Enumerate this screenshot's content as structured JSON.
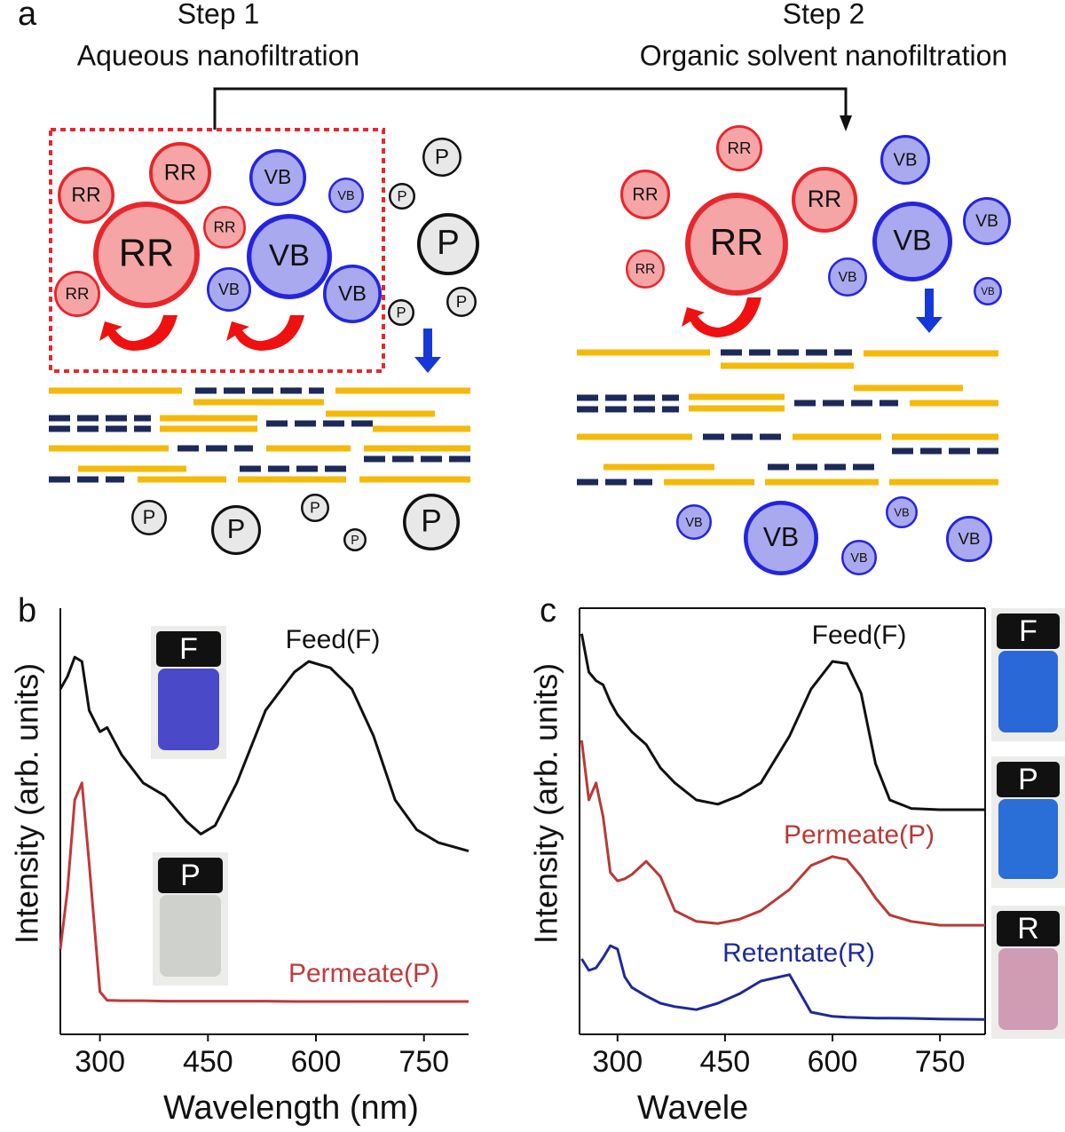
{
  "panel_labels": [
    "a",
    "b",
    "c"
  ],
  "diagram": {
    "step1": {
      "title": "Step 1",
      "subtitle": "Aqueous nanofiltration"
    },
    "step2": {
      "title": "Step 2",
      "subtitle": "Organic solvent nanofiltration"
    },
    "species": {
      "rr": "RR",
      "vb": "VB",
      "p": "P"
    }
  },
  "chart_data": [
    {
      "type": "line",
      "x_label": "Wavelength (nm)",
      "y_label": "Intensity (arb. units)",
      "xlim": [
        245,
        812
      ],
      "ylim": [
        0,
        100
      ],
      "xticks": [
        300,
        450,
        600,
        750
      ],
      "x": [
        245,
        255,
        265,
        275,
        285,
        300,
        310,
        330,
        360,
        390,
        420,
        440,
        460,
        490,
        530,
        570,
        590,
        620,
        650,
        680,
        710,
        740,
        770,
        812
      ],
      "series": [
        {
          "name": "Feed(F)",
          "color": "#111111",
          "values": [
            81,
            84,
            88.5,
            87.5,
            76,
            71,
            72,
            65.6,
            59,
            56,
            50,
            47,
            49,
            59,
            76,
            85,
            87.5,
            86,
            81,
            70,
            55,
            48,
            45,
            43
          ]
        },
        {
          "name": "Permeate(P)",
          "color": "#c0393b",
          "values": [
            20,
            34,
            55,
            59,
            40,
            10,
            8,
            7.9,
            7.9,
            7.8,
            7.8,
            7.8,
            7.8,
            7.8,
            7.8,
            7.7,
            7.7,
            7.7,
            7.7,
            7.7,
            7.7,
            7.7,
            7.7,
            7.7
          ]
        }
      ],
      "vials": [
        "F",
        "P"
      ]
    },
    {
      "type": "line",
      "x_label": "Wavele",
      "y_label": "Intensity (arb. units)",
      "xlim": [
        247,
        813
      ],
      "ylim": [
        0,
        100
      ],
      "xticks": [
        300,
        450,
        600,
        750
      ],
      "x": [
        250,
        260,
        270,
        280,
        290,
        300,
        310,
        320,
        340,
        360,
        380,
        410,
        440,
        470,
        500,
        540,
        570,
        600,
        620,
        640,
        660,
        680,
        710,
        750,
        813
      ],
      "series": [
        {
          "name": "Feed(F)",
          "color": "#111111",
          "values": [
            94,
            85,
            83,
            82,
            78,
            75,
            73,
            71,
            68,
            62.5,
            59,
            55,
            54,
            56,
            59,
            70,
            81,
            87.5,
            87,
            80,
            63.5,
            55,
            53,
            52.7,
            52.7
          ]
        },
        {
          "name": "Permeate(P)",
          "color": "#b83a36",
          "values": [
            69,
            55,
            59,
            51,
            38,
            36,
            36.5,
            37.5,
            40.6,
            37,
            29,
            26.5,
            26,
            27,
            29,
            34,
            39.6,
            41.7,
            41,
            37,
            32,
            28,
            26.5,
            25.6,
            25.6
          ]
        },
        {
          "name": "Retentate(R)",
          "color": "#1f2a9c",
          "values": [
            17.7,
            15,
            15.6,
            18,
            20.8,
            20,
            13.5,
            11,
            9,
            7.3,
            6.5,
            5.8,
            7.3,
            9.5,
            12.5,
            14,
            5.2,
            4.2,
            4,
            3.9,
            3.8,
            3.8,
            3.75,
            3.6,
            3.5
          ]
        }
      ],
      "vials": [
        "F",
        "P",
        "R"
      ]
    }
  ]
}
